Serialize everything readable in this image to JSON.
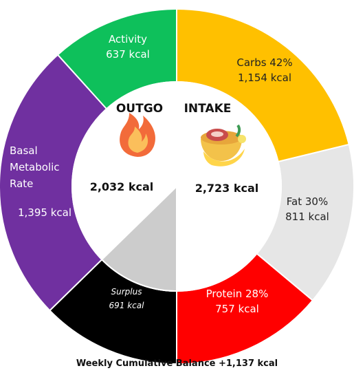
{
  "chart_data": {
    "type": "pie",
    "title": "",
    "outgo": {
      "label": "OUTGO",
      "total": "2,032 kcal",
      "icon": "fire-icon",
      "segments": [
        {
          "key": "bmr",
          "lines": [
            "Basal",
            "Metabolic",
            "Rate"
          ],
          "value_text": "1,395 kcal",
          "value": 1395,
          "color": "#7030A0",
          "text_color": "#ffffff"
        },
        {
          "key": "activity",
          "lines": [
            "Activity"
          ],
          "value_text": "637 kcal",
          "value": 637,
          "color": "#0EC05B",
          "text_color": "#ffffff"
        }
      ],
      "surplus": {
        "label": "Surplus",
        "value_text": "691 kcal",
        "value": 691,
        "color": "#000000",
        "text_color": "#ffffff"
      }
    },
    "intake": {
      "label": "INTAKE",
      "total": "2,723 kcal",
      "icon": "meat-bowl-icon",
      "segments": [
        {
          "key": "carbs",
          "lines": [
            "Carbs 42%"
          ],
          "value_text": "1,154 kcal",
          "value": 1154,
          "color": "#FFC000",
          "text_color": "#222222"
        },
        {
          "key": "fat",
          "lines": [
            "Fat 30%"
          ],
          "value_text": "811 kcal",
          "value": 811,
          "color": "#E6E6E6",
          "text_color": "#222222"
        },
        {
          "key": "protein",
          "lines": [
            "Protein 28%"
          ],
          "value_text": "757 kcal",
          "value": 757,
          "color": "#FF0000",
          "text_color": "#ffffff"
        }
      ]
    },
    "inner_left_color": "#ffffff",
    "inner_surplus_color": "#CCCCCC"
  },
  "footer": "Weekly Cumulative Balance +1,137 kcal"
}
